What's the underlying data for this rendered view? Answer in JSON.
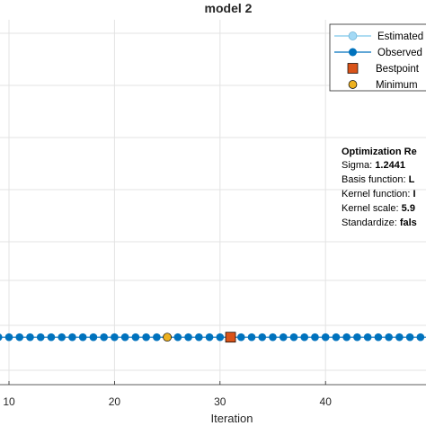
{
  "chart_data": {
    "type": "line",
    "title": "model 2",
    "xlabel": "Iteration",
    "ylabel": "",
    "xlim": [
      9,
      50
    ],
    "ylim": [
      0,
      1
    ],
    "x_ticks": [
      "10",
      "20",
      "30",
      "40"
    ],
    "x_tick_values": [
      10,
      20,
      30,
      40
    ],
    "grid": true,
    "legend_position": "top-right",
    "legend": [
      {
        "label": "Estimated",
        "marker": "circle",
        "color": "#a3d9f5"
      },
      {
        "label": "Observed",
        "marker": "circle",
        "color": "#0072bd"
      },
      {
        "label": "Bestpoint",
        "marker": "square",
        "color": "#d95319"
      },
      {
        "label": "Minimum",
        "marker": "circle",
        "color": "#edb120"
      }
    ],
    "series": [
      {
        "name": "Observed",
        "x": [
          9,
          10,
          11,
          12,
          13,
          14,
          15,
          16,
          17,
          18,
          19,
          20,
          21,
          22,
          23,
          24,
          25,
          26,
          27,
          28,
          29,
          30,
          31,
          32,
          33,
          34,
          35,
          36,
          37,
          38,
          39,
          40,
          41,
          42,
          43,
          44,
          45,
          46,
          47,
          48,
          49,
          50
        ],
        "y": [
          0.06,
          0.06,
          0.06,
          0.06,
          0.06,
          0.06,
          0.06,
          0.06,
          0.06,
          0.06,
          0.06,
          0.06,
          0.06,
          0.06,
          0.06,
          0.06,
          0.06,
          0.06,
          0.06,
          0.06,
          0.06,
          0.06,
          0.06,
          0.06,
          0.06,
          0.06,
          0.06,
          0.06,
          0.06,
          0.06,
          0.06,
          0.06,
          0.06,
          0.06,
          0.06,
          0.06,
          0.06,
          0.06,
          0.06,
          0.06,
          0.06,
          0.06
        ]
      },
      {
        "name": "Bestpoint",
        "x": [
          31
        ],
        "y": [
          0.06
        ]
      },
      {
        "name": "Minimum",
        "x": [
          25
        ],
        "y": [
          0.06
        ]
      }
    ],
    "annotation": {
      "heading": "Optimization Re",
      "lines": [
        {
          "label": "Sigma: ",
          "value": "1.2441"
        },
        {
          "label": "Basis function: ",
          "value": "L"
        },
        {
          "label": "Kernel function: ",
          "value": "I"
        },
        {
          "label": "Kernel scale: ",
          "value": "5.9"
        },
        {
          "label": "Standardize: ",
          "value": "fals"
        }
      ]
    },
    "colors": {
      "observed": "#0072bd",
      "estimated": "#a3d9f5",
      "bestpoint": "#d95319",
      "minimum": "#edb120",
      "grid": "#e3e3e3",
      "axis": "#262626"
    }
  }
}
